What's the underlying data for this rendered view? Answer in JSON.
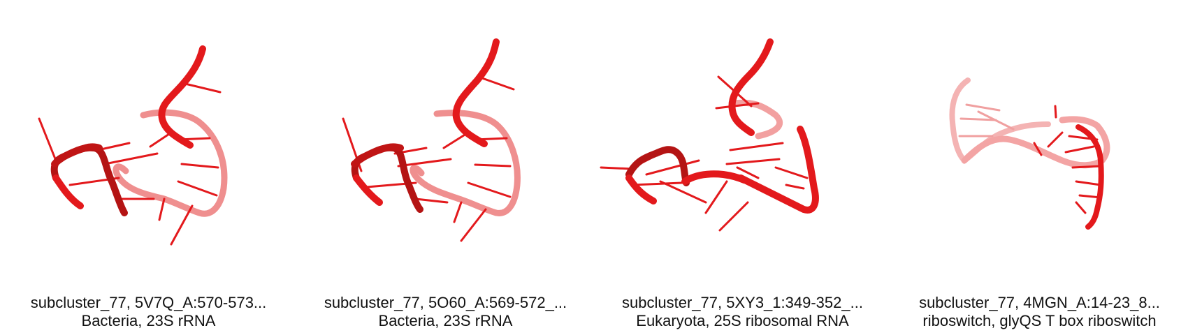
{
  "panels": [
    {
      "line1": "subcluster_77, 5V7Q_A:570-573...",
      "line2": "Bacteria, 23S rRNA",
      "color": "#e3191c"
    },
    {
      "line1": "subcluster_77, 5O60_A:569-572_...",
      "line2": "Bacteria, 23S rRNA",
      "color": "#e3191c"
    },
    {
      "line1": "subcluster_77, 5XY3_1:349-352_...",
      "line2": "Eukaryota, 25S ribosomal RNA",
      "color": "#e3191c"
    },
    {
      "line1": "subcluster_77, 4MGN_A:14-23_8...",
      "line2": "riboswitch, glyQS T box riboswitch",
      "color": "#e3191c"
    }
  ],
  "style": {
    "backbone_color": "#e3191c",
    "dark_color": "#9a1010",
    "pale_color": "#f2a0a0"
  }
}
